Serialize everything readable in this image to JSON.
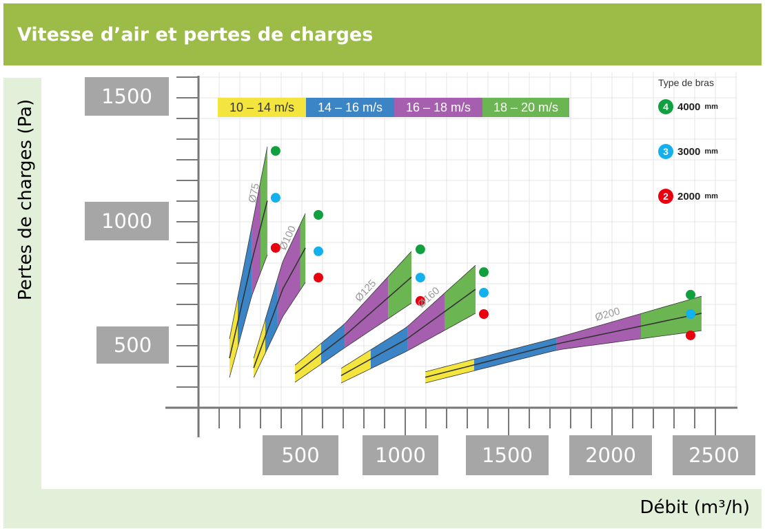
{
  "header": {
    "title": "Vitesse d’air et pertes de charges"
  },
  "chart_data": {
    "type": "area",
    "title": "Vitesse d’air et pertes de charges",
    "xlabel": "Débit (m³/h)",
    "ylabel": "Pertes de charges (Pa)",
    "xlim": [
      0,
      2600
    ],
    "ylim": [
      250,
      1550
    ],
    "x_tick_step": 100,
    "y_tick_step": 83.3,
    "grid": true,
    "x_tick_labels": [
      "500",
      "1000",
      "1500",
      "2000",
      "2500"
    ],
    "y_tick_labels": [
      "1500",
      "1000",
      "500"
    ],
    "velocity_legend": [
      {
        "label": "10 – 14 m/s",
        "color": "#f3e43e",
        "text_color": "#333333"
      },
      {
        "label": "14 – 16 m/s",
        "color": "#3b84c6",
        "text_color": "#ffffff"
      },
      {
        "label": "16 – 18 m/s",
        "color": "#a65fae",
        "text_color": "#ffffff"
      },
      {
        "label": "18 – 20 m/s",
        "color": "#6bb552",
        "text_color": "#ffffff"
      }
    ],
    "arm_legend": {
      "title": "Type de bras",
      "items": [
        {
          "num": "4",
          "value": "4000",
          "unit": "mm",
          "color": "#10a040"
        },
        {
          "num": "3",
          "value": "3000",
          "unit": "mm",
          "color": "#12b0ec"
        },
        {
          "num": "2",
          "value": "2000",
          "unit": "mm",
          "color": "#e8000e"
        }
      ]
    },
    "series": [
      {
        "name": "Ø75",
        "points": [
          [
            150,
            369,
            447,
            525
          ],
          [
            257,
            697,
            836,
            975
          ],
          [
            333,
            864,
            1082,
            1300
          ]
        ],
        "boundaries": [
          150,
          190,
          257,
          300,
          333
        ],
        "dots": {
          "flow": 373,
          "4000": 1283,
          "3000": 1094,
          "2000": 892
        }
      },
      {
        "name": "Ø100",
        "points": [
          [
            267,
            369,
            408,
            447
          ],
          [
            407,
            614,
            725,
            836
          ],
          [
            517,
            753,
            892,
            1031
          ]
        ],
        "boundaries": [
          267,
          323,
          383,
          493,
          517
        ],
        "dots": {
          "flow": 580,
          "4000": 1025,
          "3000": 878,
          "2000": 772
        }
      },
      {
        "name": "Ø125",
        "points": [
          [
            467,
            350,
            385,
            419
          ],
          [
            707,
            489,
            538,
            586
          ],
          [
            1030,
            669,
            774,
            878
          ]
        ],
        "boundaries": [
          467,
          593,
          707,
          917,
          1030
        ],
        "dots": {
          "flow": 1073,
          "4000": 886,
          "3000": 772,
          "2000": 678
        }
      },
      {
        "name": "Ø160",
        "points": [
          [
            690,
            347,
            377,
            406
          ],
          [
            1007,
            475,
            524,
            572
          ],
          [
            1340,
            628,
            725,
            822
          ]
        ],
        "boundaries": [
          690,
          833,
          1013,
          1190,
          1340
        ],
        "dots": {
          "flow": 1380,
          "4000": 794,
          "3000": 711,
          "2000": 625
        }
      },
      {
        "name": "Ø200",
        "points": [
          [
            1097,
            347,
            370,
            392
          ],
          [
            1740,
            481,
            506,
            531
          ],
          [
            2433,
            558,
            628,
            697
          ]
        ],
        "boundaries": [
          1097,
          1333,
          1733,
          2140,
          2433
        ],
        "dots": {
          "flow": 2380,
          "4000": 703,
          "3000": 625,
          "2000": 539
        }
      }
    ]
  }
}
